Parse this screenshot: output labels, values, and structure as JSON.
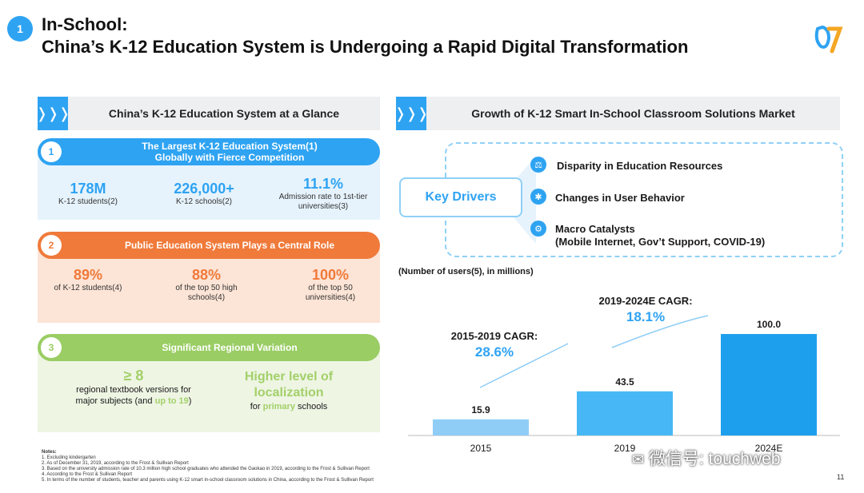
{
  "header": {
    "section_number": "1",
    "title_line1": "In-School:",
    "title_line2": "China’s K-12 Education System is Undergoing a Rapid Digital Transformation",
    "logo_text": "07"
  },
  "left_panel": {
    "title": "China’s K-12 Education System at a Glance",
    "sections": [
      {
        "number": "1",
        "heading": "The Largest K-12 Education System(1) Globally with Fierce Competition",
        "stats": [
          {
            "value": "178M",
            "label": "K-12 students(2)"
          },
          {
            "value": "226,000+",
            "label": "K-12 schools(2)"
          },
          {
            "value": "11.1%",
            "label": "Admission rate to 1st-tier universities(3)"
          }
        ]
      },
      {
        "number": "2",
        "heading": "Public Education System Plays a Central Role",
        "stats": [
          {
            "value": "89%",
            "label": "of K-12 students(4)"
          },
          {
            "value": "88%",
            "label": "of the top 50 high schools(4)"
          },
          {
            "value": "100%",
            "label": "of the top 50 universities(4)"
          }
        ]
      },
      {
        "number": "3",
        "heading": "Significant Regional Variation",
        "stat1_value": "≥ 8",
        "stat1_line1": "regional textbook versions for",
        "stat1_line2": "major subjects (and ",
        "stat1_highlight": "up to 19",
        "stat1_end": ")",
        "stat2_value_line1": "Higher level of",
        "stat2_value_line2": "localization",
        "stat2_pre": "for ",
        "stat2_highlight": "primary",
        "stat2_post": " schools"
      }
    ]
  },
  "right_panel": {
    "title": "Growth of  K-12 Smart In-School Classroom Solutions Market",
    "key_drivers_label": "Key Drivers",
    "drivers": [
      {
        "icon": "scale-icon",
        "text": "Disparity in Education Resources"
      },
      {
        "icon": "swirl-icon",
        "text": "Changes in User Behavior"
      },
      {
        "icon": "gear-icon",
        "text": "Macro Catalysts"
      },
      {
        "icon": "",
        "text": "(Mobile Internet, Gov’t Support, COVID-19)"
      }
    ],
    "units_note": "(Number of users(5), in millions)",
    "cagr1_label": "2015-2019 CAGR:",
    "cagr1_value": "28.6%",
    "cagr2_label": "2019-2024E CAGR:",
    "cagr2_value": "18.1%"
  },
  "chart_data": {
    "type": "bar",
    "categories": [
      "2015",
      "2019",
      "2024E"
    ],
    "values": [
      15.9,
      43.5,
      100.0
    ],
    "value_labels": [
      "15.9",
      "43.5",
      "100.0"
    ],
    "ylabel": "Number of users, in millions",
    "ylim": [
      0,
      100
    ],
    "colors": [
      "#8fcdf7",
      "#47b8f5",
      "#1e9fee"
    ],
    "grid": false
  },
  "notes": {
    "heading": "Notes:",
    "lines": [
      "1. Excluding kindergarten",
      "2. As of December 31, 2019, according to the Frost & Sullivan Report",
      "3. Based on the university admission rate of 10.3 million high school graduates who attended the Gaokao in 2019, according to the Frost & Sullivan Report",
      "4. According to the Frost & Sullivan Report",
      "5. In terms of the number of students, teacher and parents using K-12 smart in-school classroom solutions in China, according to the Frost & Sullivan Report"
    ]
  },
  "watermark": "微信号: touchweb",
  "page_number": "11",
  "colors": {
    "accent_blue": "#2ea3f2",
    "orange": "#f07a3a",
    "orange_light": "#fce4d6",
    "green": "#9acd64",
    "green_light": "#eef5e3",
    "blue_light": "#e6f3fc",
    "green_text": "#a3d06a"
  }
}
